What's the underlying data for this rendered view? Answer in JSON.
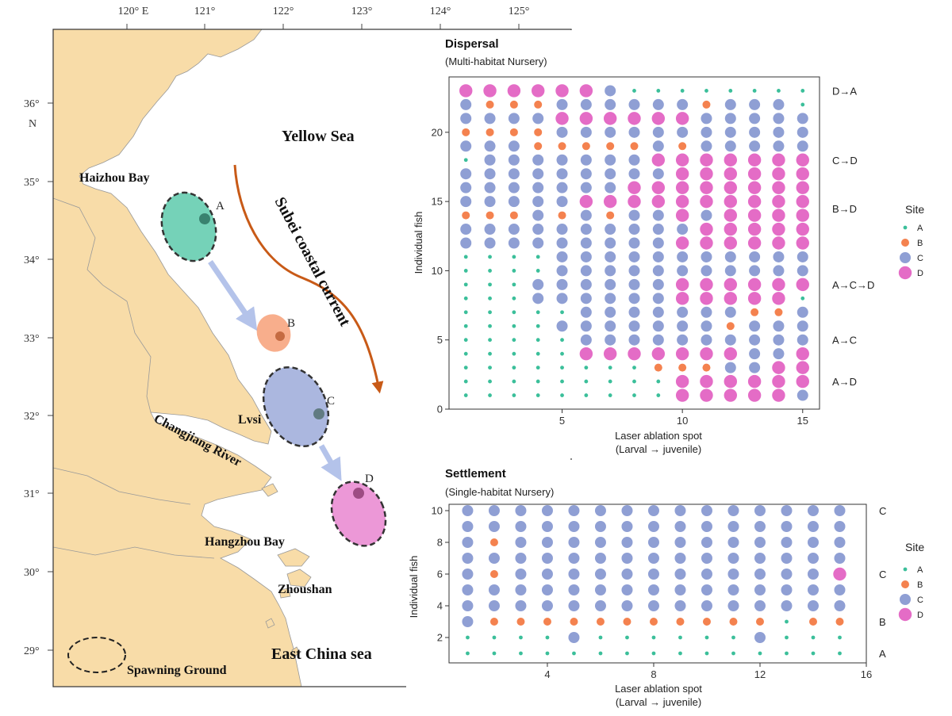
{
  "colors": {
    "land": "#f8dca8",
    "sea": "#ffffff",
    "site_A": "#3bbf9a",
    "site_B": "#f4824f",
    "site_C": "#8f9fd4",
    "site_D": "#e46cc6",
    "current": "#c85a17",
    "arrow": "#b4c3ea"
  },
  "map": {
    "lon_ticks": [
      "120° E",
      "121°",
      "122°",
      "123°",
      "124°",
      "125°"
    ],
    "lat_ticks": [
      "36°",
      "35°",
      "34°",
      "33°",
      "32°",
      "31°",
      "30°",
      "29°"
    ],
    "lat_unit": "N",
    "labels": {
      "yellow_sea": "Yellow Sea",
      "haizhou_bay": "Haizhou Bay",
      "current": "Subei coastal current",
      "lvsi": "Lvsi",
      "changjiang": "Changjiang River",
      "hangzhou_bay": "Hangzhou Bay",
      "zhoushan": "Zhoushan",
      "east_china_sea": "East China sea",
      "spawning_ground": "Spawning Ground"
    },
    "sites": [
      "A",
      "B",
      "C",
      "D"
    ]
  },
  "chart_data": [
    {
      "type": "scatter",
      "title": "Dispersal",
      "subtitle": "(Multi-habitat Nursery)",
      "xlabel": "Laser ablation spot",
      "xlabel2": "(Larval → juvenile)",
      "ylabel": "Individual fish",
      "xlim": [
        0.3,
        15.7
      ],
      "ylim": [
        0,
        24
      ],
      "x_ticks": [
        5,
        10,
        15
      ],
      "y_ticks": [
        0,
        5,
        10,
        15,
        20
      ],
      "legend_title": "Site",
      "legend": [
        "A",
        "B",
        "C",
        "D"
      ],
      "annotations": [
        {
          "row": 23,
          "text": "D→A"
        },
        {
          "row": 18,
          "text": "C→D"
        },
        {
          "row": 14.5,
          "text": "B→D"
        },
        {
          "row": 9,
          "text": "A→C→D"
        },
        {
          "row": 5,
          "text": "A→C"
        },
        {
          "row": 2,
          "text": "A→D"
        }
      ],
      "rows": [
        {
          "fish": 23,
          "sites": "DDDDDDCAAAAAAAA"
        },
        {
          "fish": 22,
          "sites": "CBBBCCCCCCBCCCA"
        },
        {
          "fish": 21,
          "sites": "CCCCDDDDDDCCCCC"
        },
        {
          "fish": 20,
          "sites": "BBBBCCCCCCCCCCC"
        },
        {
          "fish": 19,
          "sites": "CCCBBBBBCBCCCCC"
        },
        {
          "fish": 18,
          "sites": "ACCCCCCCDDDDDDD"
        },
        {
          "fish": 17,
          "sites": "CCCCCCCCCDDDDDD"
        },
        {
          "fish": 16,
          "sites": "CCCCCCCDDDDDDDD"
        },
        {
          "fish": 15,
          "sites": "CCCCCDDDDDDDDDD"
        },
        {
          "fish": 14,
          "sites": "BBBCBCBCCDCDDDD"
        },
        {
          "fish": 13,
          "sites": "CCCCCCCCCCDDDDD"
        },
        {
          "fish": 12,
          "sites": "CCCCCCCCCDDDDDD"
        },
        {
          "fish": 11,
          "sites": "AAAACCCCCCCCCCC"
        },
        {
          "fish": 10,
          "sites": "AAAACCCCCCCCCCC"
        },
        {
          "fish": 9,
          "sites": "AAACCCCCCDDDDDD"
        },
        {
          "fish": 8,
          "sites": "AAACCCCCCDDDDDA"
        },
        {
          "fish": 7,
          "sites": "AAAAACCCCCCCBBC"
        },
        {
          "fish": 6,
          "sites": "AAAACCCCCCCBCCC"
        },
        {
          "fish": 5,
          "sites": "AAAAACCCCCCCCCC"
        },
        {
          "fish": 4,
          "sites": "AAAAADDDDDDDCCD"
        },
        {
          "fish": 3,
          "sites": "AAAAAAAABBBCCDD"
        },
        {
          "fish": 2,
          "sites": "AAAAAAAAADDDDDD"
        },
        {
          "fish": 1,
          "sites": "AAAAAAAAADDDDDC"
        }
      ]
    },
    {
      "type": "scatter",
      "title": "Settlement",
      "subtitle": "(Single-habitat Nursery)",
      "xlabel": "Laser ablation spot",
      "xlabel2": "(Larval → juvenile)",
      "ylabel": "Individual fish",
      "xlim": [
        0.3,
        16
      ],
      "ylim": [
        0.4,
        10.4
      ],
      "x_ticks": [
        4,
        8,
        12,
        16
      ],
      "y_ticks": [
        2,
        4,
        6,
        8,
        10
      ],
      "legend_title": "Site",
      "legend": [
        "A",
        "B",
        "C",
        "D"
      ],
      "annotations": [
        {
          "row": 10,
          "text": "C"
        },
        {
          "row": 6,
          "text": "C"
        },
        {
          "row": 3,
          "text": "B"
        },
        {
          "row": 1,
          "text": "A"
        }
      ],
      "rows": [
        {
          "fish": 10,
          "sites": "CCCCCCCCCCCCCCC"
        },
        {
          "fish": 9,
          "sites": "CCCCCCCCCCCCCCC"
        },
        {
          "fish": 8,
          "sites": "CBCCCCCCCCCCCCC"
        },
        {
          "fish": 7,
          "sites": "CCCCCCCCCCCCCCC"
        },
        {
          "fish": 6,
          "sites": "CBCCCCCCCCCCCCD"
        },
        {
          "fish": 5,
          "sites": "CCCCCCCCCCCCCCC"
        },
        {
          "fish": 4,
          "sites": "CCCCCCCCCCCCCCC"
        },
        {
          "fish": 3,
          "sites": "CBBBBBBBBBBBABB"
        },
        {
          "fish": 2,
          "sites": "AAAACAAAAAACAAA"
        },
        {
          "fish": 1,
          "sites": "AAAAAAAAAAAAAAA"
        }
      ]
    }
  ]
}
